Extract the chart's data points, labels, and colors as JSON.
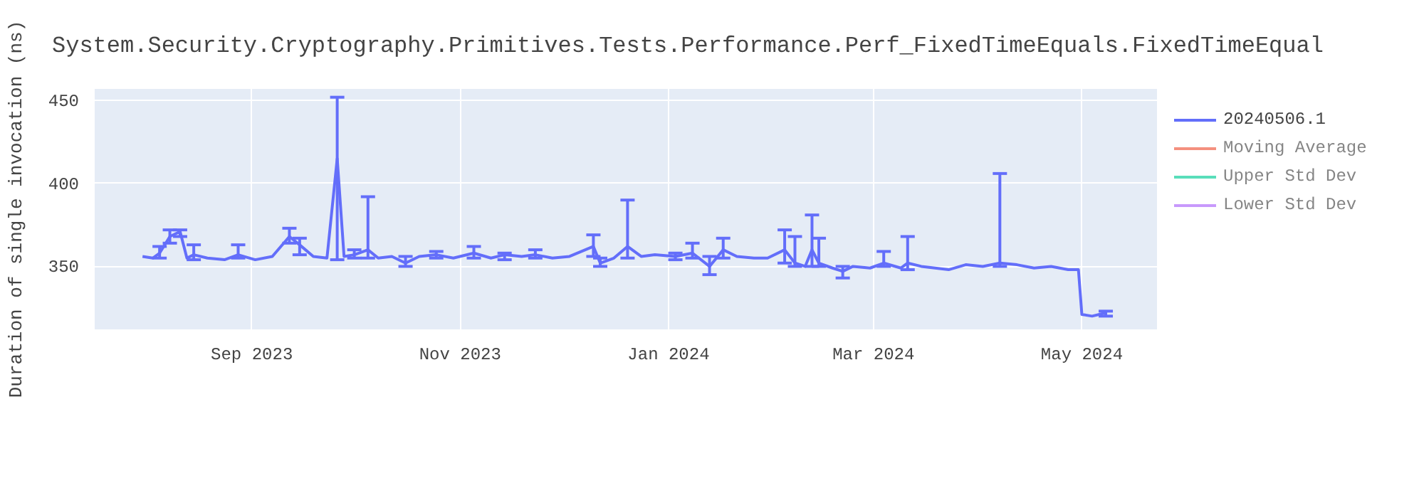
{
  "chart_data": {
    "type": "line",
    "title": "System.Security.Cryptography.Primitives.Tests.Performance.Perf_FixedTimeEquals.FixedTimeEqual",
    "ylabel": "Duration of single invocation (ns)",
    "x": [
      "2023-07-31",
      "2023-08-03",
      "2023-08-05",
      "2023-08-08",
      "2023-08-11",
      "2023-08-13",
      "2023-08-15",
      "2023-08-19",
      "2023-08-24",
      "2023-08-28",
      "2023-09-02",
      "2023-09-07",
      "2023-09-12",
      "2023-09-15",
      "2023-09-19",
      "2023-09-23",
      "2023-09-26",
      "2023-09-28",
      "2023-10-01",
      "2023-10-05",
      "2023-10-08",
      "2023-10-12",
      "2023-10-16",
      "2023-10-20",
      "2023-10-25",
      "2023-10-30",
      "2023-11-05",
      "2023-11-10",
      "2023-11-14",
      "2023-11-19",
      "2023-11-23",
      "2023-11-28",
      "2023-12-03",
      "2023-12-10",
      "2023-12-12",
      "2023-12-16",
      "2023-12-20",
      "2023-12-24",
      "2023-12-28",
      "2024-01-03",
      "2024-01-08",
      "2024-01-13",
      "2024-01-17",
      "2024-01-21",
      "2024-01-26",
      "2024-01-30",
      "2024-02-04",
      "2024-02-07",
      "2024-02-10",
      "2024-02-12",
      "2024-02-14",
      "2024-02-18",
      "2024-02-21",
      "2024-02-24",
      "2024-02-29",
      "2024-03-04",
      "2024-03-09",
      "2024-03-11",
      "2024-03-15",
      "2024-03-19",
      "2024-03-23",
      "2024-03-28",
      "2024-04-02",
      "2024-04-07",
      "2024-04-12",
      "2024-04-17",
      "2024-04-22",
      "2024-04-27",
      "2024-04-30",
      "2024-05-01",
      "2024-05-04",
      "2024-05-08"
    ],
    "series": [
      {
        "name": "20240506.1",
        "color": "#636efa",
        "values": [
          356,
          355,
          358,
          368,
          371,
          355,
          357,
          355,
          354,
          357,
          354,
          356,
          368,
          363,
          356,
          355,
          415,
          356,
          357,
          360,
          355,
          356,
          352,
          356,
          357,
          355,
          358,
          355,
          357,
          356,
          357,
          355,
          356,
          362,
          352,
          355,
          362,
          356,
          357,
          356,
          358,
          350,
          360,
          356,
          355,
          355,
          360,
          352,
          350,
          360,
          352,
          349,
          347,
          350,
          349,
          352,
          349,
          352,
          350,
          349,
          348,
          351,
          350,
          352,
          351,
          349,
          350,
          348,
          348,
          321,
          320,
          322
        ],
        "errors": [
          null,
          null,
          [
            355,
            362
          ],
          [
            364,
            372
          ],
          [
            368,
            372
          ],
          null,
          [
            354,
            363
          ],
          null,
          null,
          [
            355,
            363
          ],
          null,
          null,
          [
            364,
            373
          ],
          [
            357,
            367
          ],
          null,
          null,
          [
            354,
            452
          ],
          null,
          [
            355,
            360
          ],
          [
            355,
            392
          ],
          null,
          null,
          [
            350,
            356
          ],
          null,
          [
            355,
            359
          ],
          null,
          [
            355,
            362
          ],
          null,
          [
            354,
            358
          ],
          null,
          [
            355,
            360
          ],
          null,
          null,
          [
            356,
            369
          ],
          [
            350,
            355
          ],
          null,
          [
            355,
            390
          ],
          null,
          null,
          [
            354,
            358
          ],
          [
            355,
            364
          ],
          [
            345,
            356
          ],
          [
            355,
            367
          ],
          null,
          null,
          null,
          [
            352,
            372
          ],
          [
            350,
            368
          ],
          null,
          [
            350,
            381
          ],
          [
            350,
            367
          ],
          null,
          [
            343,
            350
          ],
          null,
          null,
          [
            350,
            359
          ],
          null,
          [
            348,
            368
          ],
          null,
          null,
          null,
          null,
          null,
          [
            350,
            406
          ],
          null,
          null,
          null,
          null,
          null,
          null,
          null,
          [
            320,
            323
          ]
        ]
      },
      {
        "name": "Moving Average",
        "color": "#ef553b",
        "values": [
          null,
          null,
          null,
          null,
          null,
          null,
          null,
          null,
          null,
          null,
          null,
          null,
          null,
          null,
          null,
          null,
          null,
          null,
          null,
          null,
          null,
          null,
          null,
          null,
          null,
          null,
          null,
          null,
          null,
          null,
          null,
          null,
          null,
          null,
          null,
          null,
          null,
          null,
          null,
          null,
          null,
          null,
          null,
          null,
          null,
          null,
          null,
          null,
          null,
          null,
          null,
          null,
          null,
          null,
          null,
          null,
          null,
          null,
          null,
          null,
          null,
          null,
          null,
          null,
          null,
          null,
          null,
          null,
          null,
          null,
          null,
          null
        ]
      },
      {
        "name": "Upper Std Dev",
        "color": "#00cc96",
        "values": [
          null,
          null,
          null,
          null,
          null,
          null,
          null,
          null,
          null,
          null,
          null,
          null,
          null,
          null,
          null,
          null,
          null,
          null,
          null,
          null,
          null,
          null,
          null,
          null,
          null,
          null,
          null,
          null,
          null,
          null,
          null,
          null,
          null,
          null,
          null,
          null,
          null,
          null,
          null,
          null,
          null,
          null,
          null,
          null,
          null,
          null,
          null,
          null,
          null,
          null,
          null,
          null,
          null,
          null,
          null,
          null,
          null,
          null,
          null,
          null,
          null,
          null,
          null,
          null,
          null,
          null,
          null,
          null,
          null,
          null,
          null,
          null
        ]
      },
      {
        "name": "Lower Std Dev",
        "color": "#ab63fa",
        "values": [
          null,
          null,
          null,
          null,
          null,
          null,
          null,
          null,
          null,
          null,
          null,
          null,
          null,
          null,
          null,
          null,
          null,
          null,
          null,
          null,
          null,
          null,
          null,
          null,
          null,
          null,
          null,
          null,
          null,
          null,
          null,
          null,
          null,
          null,
          null,
          null,
          null,
          null,
          null,
          null,
          null,
          null,
          null,
          null,
          null,
          null,
          null,
          null,
          null,
          null,
          null,
          null,
          null,
          null,
          null,
          null,
          null,
          null,
          null,
          null,
          null,
          null,
          null,
          null,
          null,
          null,
          null,
          null,
          null,
          null,
          null,
          null
        ]
      }
    ],
    "xlim": [
      "2023-07-17",
      "2024-05-23"
    ],
    "xticks": [
      {
        "value": "2023-09-01",
        "label": "Sep 2023"
      },
      {
        "value": "2023-11-01",
        "label": "Nov 2023"
      },
      {
        "value": "2024-01-01",
        "label": "Jan 2024"
      },
      {
        "value": "2024-03-01",
        "label": "Mar 2024"
      },
      {
        "value": "2024-05-01",
        "label": "May 2024"
      }
    ],
    "ylim": [
      312,
      457
    ],
    "yticks": [
      350,
      400,
      450
    ],
    "grid": true,
    "legend": "top right"
  }
}
